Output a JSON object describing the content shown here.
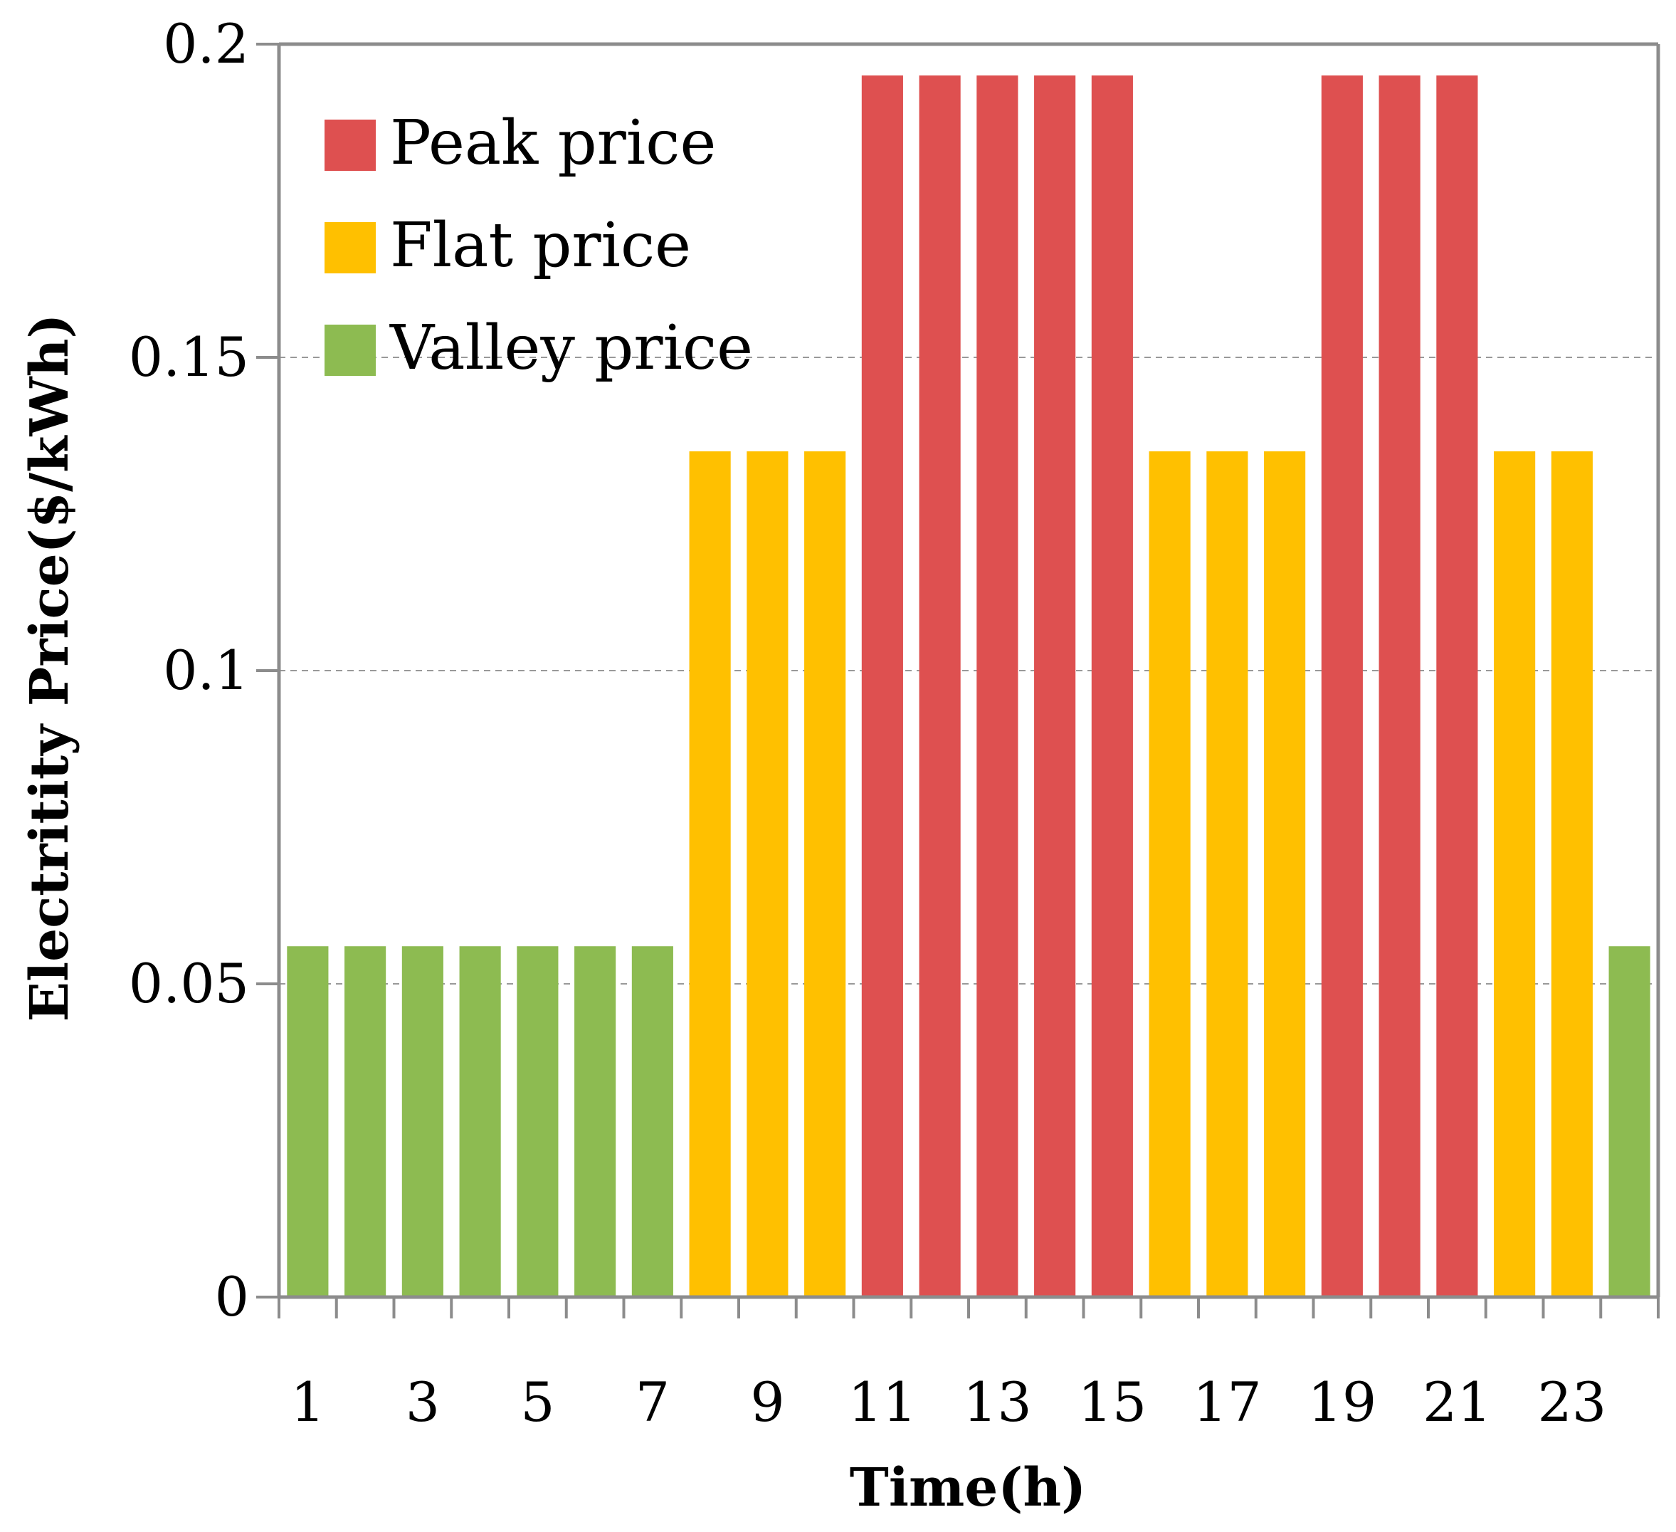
{
  "chart_data": {
    "type": "bar",
    "title": "",
    "xlabel": "Time(h)",
    "ylabel": "Electritity Price($/kWh)",
    "ylim": [
      0,
      0.2
    ],
    "y_ticks": [
      "0",
      "0.05",
      "0.1",
      "0.15",
      "0.2"
    ],
    "y_tick_values": [
      0,
      0.05,
      0.1,
      0.15,
      0.2
    ],
    "x_tick_labels": [
      "1",
      "3",
      "5",
      "7",
      "9",
      "11",
      "13",
      "15",
      "17",
      "19",
      "21",
      "23"
    ],
    "grid": true,
    "legend_position": "top-left",
    "colors": {
      "peak": "#DE5050",
      "flat": "#FFC000",
      "valley": "#8DBB51",
      "axis": "#8C8C8C",
      "grid": "#999999"
    },
    "series": [
      {
        "name": "Peak price",
        "key": "peak",
        "value": 0.195,
        "hours": [
          11,
          12,
          13,
          14,
          15,
          19,
          20,
          21
        ]
      },
      {
        "name": "Flat price",
        "key": "flat",
        "value": 0.135,
        "hours": [
          8,
          9,
          10,
          16,
          17,
          18,
          22,
          23
        ]
      },
      {
        "name": "Valley price",
        "key": "valley",
        "value": 0.056,
        "hours": [
          1,
          2,
          3,
          4,
          5,
          6,
          7,
          24
        ]
      }
    ],
    "categories": [
      1,
      2,
      3,
      4,
      5,
      6,
      7,
      8,
      9,
      10,
      11,
      12,
      13,
      14,
      15,
      16,
      17,
      18,
      19,
      20,
      21,
      22,
      23,
      24
    ],
    "values": [
      0.056,
      0.056,
      0.056,
      0.056,
      0.056,
      0.056,
      0.056,
      0.135,
      0.135,
      0.135,
      0.195,
      0.195,
      0.195,
      0.195,
      0.195,
      0.135,
      0.135,
      0.135,
      0.195,
      0.195,
      0.195,
      0.135,
      0.135,
      0.056
    ],
    "bar_series": [
      "valley",
      "valley",
      "valley",
      "valley",
      "valley",
      "valley",
      "valley",
      "flat",
      "flat",
      "flat",
      "peak",
      "peak",
      "peak",
      "peak",
      "peak",
      "flat",
      "flat",
      "flat",
      "peak",
      "peak",
      "peak",
      "flat",
      "flat",
      "valley"
    ]
  }
}
